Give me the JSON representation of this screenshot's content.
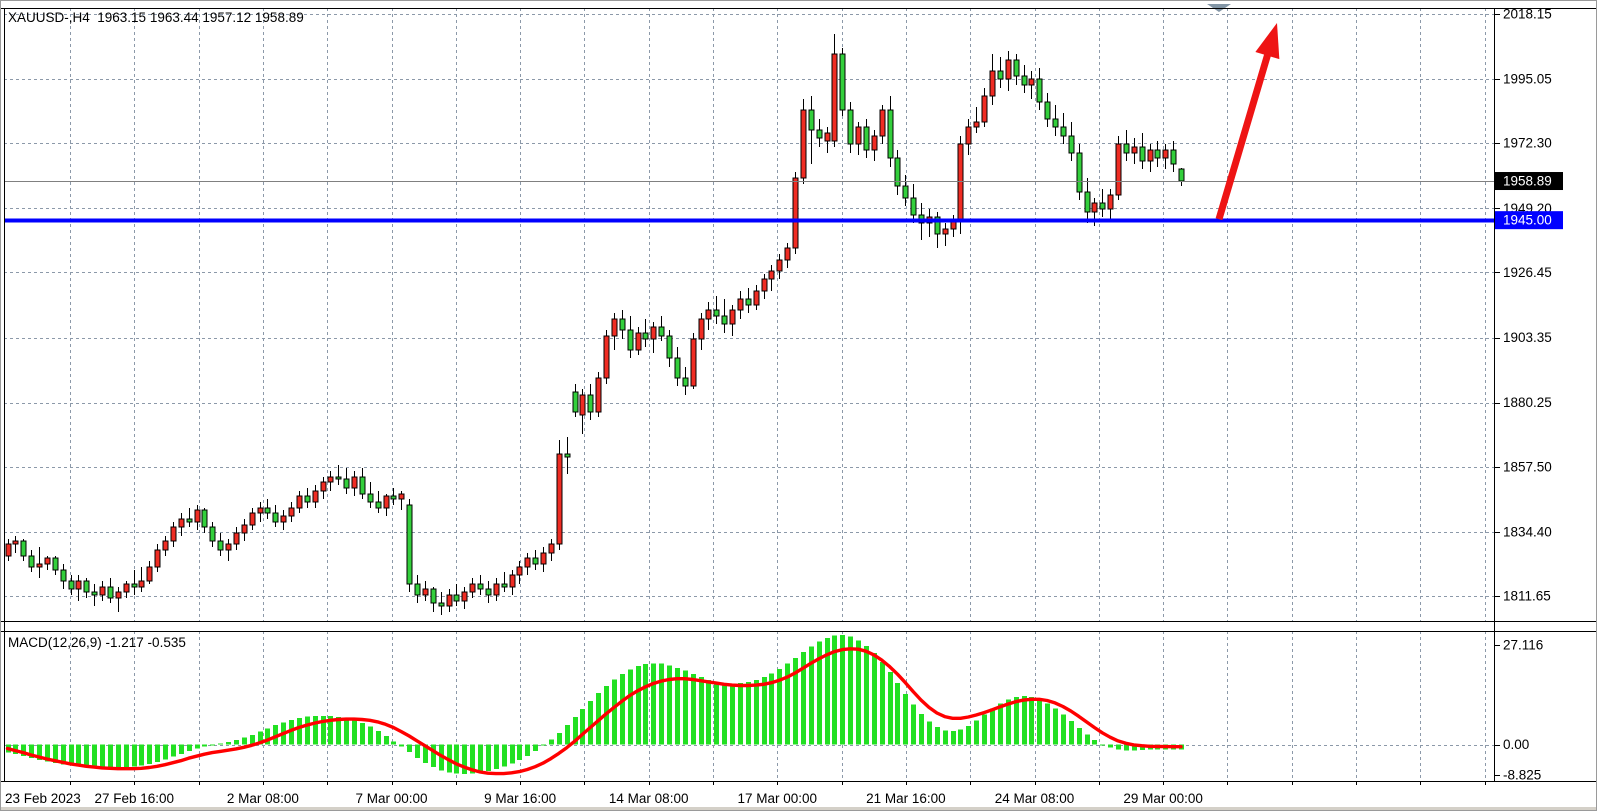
{
  "window": {
    "title": "XAUUSD-,H4  1963.15 1963.44 1957.12 1958.89"
  },
  "chart_data": {
    "type": "candlestick",
    "symbol": "XAUUSD-",
    "timeframe": "H4",
    "title": "XAUUSD-,H4  1963.15 1963.44 1957.12 1958.89",
    "ohlc_display": {
      "open": "1963.15",
      "high": "1963.44",
      "low": "1957.12",
      "close": "1958.89"
    },
    "ylim": [
      1811.65,
      2018.15
    ],
    "grid": true,
    "price_axis_labels": [
      "2018.15",
      "1995.05",
      "1972.30",
      "1949.20",
      "1926.45",
      "1903.35",
      "1880.25",
      "1857.50",
      "1834.40",
      "1811.65"
    ],
    "current_price_label": {
      "text": "1958.89",
      "price": 1958.89,
      "bg": "#000000",
      "fg": "#ffffff"
    },
    "hline": {
      "price": 1945.0,
      "label": "1945.00",
      "color": "#0000ff",
      "label_fg": "#ffffff"
    },
    "time_labels": [
      "23 Feb 2023",
      "27 Feb 16:00",
      "2 Mar 08:00",
      "7 Mar 00:00",
      "9 Mar 16:00",
      "14 Mar 08:00",
      "17 Mar 00:00",
      "21 Mar 16:00",
      "24 Mar 08:00",
      "29 Mar 00:00"
    ],
    "candles": [
      [
        1826,
        1832,
        1824,
        1830
      ],
      [
        1830,
        1833,
        1827,
        1831
      ],
      [
        1831,
        1832,
        1824,
        1826
      ],
      [
        1826,
        1828,
        1820,
        1822
      ],
      [
        1822,
        1829,
        1818,
        1823
      ],
      [
        1823,
        1826,
        1821,
        1825
      ],
      [
        1825,
        1826,
        1819,
        1821
      ],
      [
        1821,
        1823,
        1814,
        1817
      ],
      [
        1817,
        1819,
        1812,
        1814
      ],
      [
        1814,
        1819,
        1810,
        1817
      ],
      [
        1817,
        1818,
        1811,
        1813
      ],
      [
        1813,
        1816,
        1808,
        1812
      ],
      [
        1812,
        1817,
        1810,
        1815
      ],
      [
        1815,
        1818,
        1809,
        1811
      ],
      [
        1811,
        1815,
        1806,
        1813
      ],
      [
        1813,
        1817,
        1811,
        1816
      ],
      [
        1816,
        1821,
        1812,
        1815
      ],
      [
        1815,
        1822,
        1813,
        1817
      ],
      [
        1817,
        1824,
        1816,
        1822
      ],
      [
        1822,
        1830,
        1820,
        1828
      ],
      [
        1828,
        1833,
        1826,
        1831
      ],
      [
        1831,
        1838,
        1829,
        1836
      ],
      [
        1836,
        1841,
        1833,
        1839
      ],
      [
        1839,
        1843,
        1836,
        1838
      ],
      [
        1838,
        1844,
        1835,
        1842
      ],
      [
        1842,
        1843,
        1834,
        1836
      ],
      [
        1836,
        1838,
        1829,
        1831
      ],
      [
        1831,
        1834,
        1826,
        1828
      ],
      [
        1828,
        1832,
        1824,
        1830
      ],
      [
        1830,
        1836,
        1828,
        1834
      ],
      [
        1834,
        1839,
        1831,
        1837
      ],
      [
        1837,
        1843,
        1835,
        1841
      ],
      [
        1841,
        1845,
        1838,
        1843
      ],
      [
        1843,
        1846,
        1839,
        1841
      ],
      [
        1841,
        1844,
        1836,
        1838
      ],
      [
        1838,
        1842,
        1835,
        1840
      ],
      [
        1840,
        1845,
        1838,
        1843
      ],
      [
        1843,
        1849,
        1841,
        1847
      ],
      [
        1847,
        1850,
        1843,
        1845
      ],
      [
        1845,
        1851,
        1843,
        1849
      ],
      [
        1849,
        1854,
        1846,
        1852
      ],
      [
        1852,
        1856,
        1849,
        1854
      ],
      [
        1854,
        1858,
        1851,
        1853
      ],
      [
        1853,
        1857,
        1848,
        1850
      ],
      [
        1850,
        1856,
        1847,
        1854
      ],
      [
        1854,
        1857,
        1846,
        1848
      ],
      [
        1848,
        1852,
        1843,
        1845
      ],
      [
        1845,
        1849,
        1841,
        1843
      ],
      [
        1843,
        1848,
        1840,
        1847
      ],
      [
        1847,
        1850,
        1844,
        1846
      ],
      [
        1846,
        1849,
        1842,
        1848
      ],
      [
        1844,
        1846,
        1813,
        1816
      ],
      [
        1816,
        1819,
        1809,
        1812
      ],
      [
        1812,
        1817,
        1810,
        1814
      ],
      [
        1814,
        1815,
        1806,
        1809
      ],
      [
        1809,
        1813,
        1805,
        1808
      ],
      [
        1808,
        1814,
        1806,
        1812
      ],
      [
        1812,
        1816,
        1808,
        1810
      ],
      [
        1810,
        1815,
        1807,
        1813
      ],
      [
        1813,
        1818,
        1811,
        1816
      ],
      [
        1816,
        1819,
        1812,
        1814
      ],
      [
        1814,
        1817,
        1809,
        1812
      ],
      [
        1812,
        1818,
        1810,
        1816
      ],
      [
        1816,
        1820,
        1813,
        1815
      ],
      [
        1815,
        1821,
        1812,
        1819
      ],
      [
        1819,
        1824,
        1816,
        1822
      ],
      [
        1822,
        1827,
        1819,
        1825
      ],
      [
        1825,
        1828,
        1821,
        1823
      ],
      [
        1823,
        1829,
        1820,
        1827
      ],
      [
        1827,
        1832,
        1824,
        1830
      ],
      [
        1830,
        1867,
        1828,
        1862
      ],
      [
        1862,
        1868,
        1855,
        1861
      ],
      [
        1884,
        1887,
        1875,
        1877
      ],
      [
        1876,
        1885,
        1869,
        1883
      ],
      [
        1883,
        1887,
        1874,
        1877
      ],
      [
        1877,
        1891,
        1875,
        1889
      ],
      [
        1889,
        1906,
        1887,
        1904
      ],
      [
        1904,
        1912,
        1899,
        1910
      ],
      [
        1910,
        1913,
        1903,
        1906
      ],
      [
        1906,
        1911,
        1896,
        1899
      ],
      [
        1899,
        1907,
        1897,
        1905
      ],
      [
        1905,
        1910,
        1900,
        1903
      ],
      [
        1903,
        1909,
        1898,
        1907
      ],
      [
        1907,
        1911,
        1902,
        1904
      ],
      [
        1904,
        1906,
        1893,
        1896
      ],
      [
        1896,
        1900,
        1886,
        1889
      ],
      [
        1889,
        1893,
        1883,
        1886
      ],
      [
        1886,
        1905,
        1885,
        1903
      ],
      [
        1903,
        1912,
        1899,
        1910
      ],
      [
        1910,
        1916,
        1906,
        1913
      ],
      [
        1913,
        1918,
        1908,
        1911
      ],
      [
        1911,
        1917,
        1905,
        1908
      ],
      [
        1908,
        1915,
        1904,
        1913
      ],
      [
        1913,
        1920,
        1910,
        1917
      ],
      [
        1917,
        1921,
        1912,
        1915
      ],
      [
        1915,
        1922,
        1913,
        1920
      ],
      [
        1920,
        1926,
        1917,
        1924
      ],
      [
        1924,
        1929,
        1920,
        1927
      ],
      [
        1927,
        1933,
        1924,
        1931
      ],
      [
        1931,
        1937,
        1928,
        1935
      ],
      [
        1935,
        1962,
        1933,
        1960
      ],
      [
        1960,
        1988,
        1958,
        1984
      ],
      [
        1984,
        1989,
        1965,
        1977
      ],
      [
        1977,
        1981,
        1971,
        1974
      ],
      [
        1973,
        1978,
        1969,
        1976
      ],
      [
        1973,
        2011,
        1971,
        2004
      ],
      [
        2004,
        2006,
        1982,
        1984
      ],
      [
        1984,
        1987,
        1969,
        1972
      ],
      [
        1972,
        1980,
        1968,
        1978
      ],
      [
        1978,
        1981,
        1967,
        1970
      ],
      [
        1970,
        1977,
        1966,
        1975
      ],
      [
        1975,
        1986,
        1972,
        1984
      ],
      [
        1984,
        1989,
        1964,
        1967
      ],
      [
        1967,
        1970,
        1954,
        1957
      ],
      [
        1957,
        1961,
        1950,
        1953
      ],
      [
        1953,
        1958,
        1944,
        1947
      ],
      [
        1947,
        1951,
        1938,
        1944
      ],
      [
        1944,
        1949,
        1939,
        1946
      ],
      [
        1946,
        1948,
        1935,
        1940
      ],
      [
        1940,
        1944,
        1936,
        1942
      ],
      [
        1942,
        1947,
        1939,
        1945
      ],
      [
        1945,
        1975,
        1940,
        1972
      ],
      [
        1972,
        1981,
        1968,
        1978
      ],
      [
        1978,
        1985,
        1976,
        1980
      ],
      [
        1980,
        1992,
        1978,
        1989
      ],
      [
        1989,
        2004,
        1986,
        1998
      ],
      [
        1998,
        2003,
        1992,
        1995
      ],
      [
        1995,
        2005,
        1991,
        2002
      ],
      [
        2002,
        2004,
        1993,
        1996
      ],
      [
        1996,
        2000,
        1990,
        1993
      ],
      [
        1993,
        1998,
        1988,
        1995
      ],
      [
        1995,
        1999,
        1984,
        1987
      ],
      [
        1987,
        1990,
        1978,
        1981
      ],
      [
        1981,
        1986,
        1975,
        1978
      ],
      [
        1978,
        1983,
        1972,
        1975
      ],
      [
        1975,
        1980,
        1966,
        1969
      ],
      [
        1969,
        1972,
        1952,
        1955
      ],
      [
        1955,
        1960,
        1944,
        1948
      ],
      [
        1948,
        1953,
        1943,
        1951
      ],
      [
        1951,
        1956,
        1946,
        1949
      ],
      [
        1949,
        1956,
        1945,
        1954
      ],
      [
        1954,
        1975,
        1952,
        1972
      ],
      [
        1972,
        1977,
        1966,
        1969
      ],
      [
        1969,
        1974,
        1965,
        1971
      ],
      [
        1971,
        1976,
        1963,
        1966
      ],
      [
        1966,
        1972,
        1962,
        1970
      ],
      [
        1970,
        1973,
        1964,
        1967
      ],
      [
        1967,
        1972,
        1963,
        1970
      ],
      [
        1970,
        1973,
        1962,
        1965
      ],
      [
        1963.15,
        1963.44,
        1957.12,
        1958.89
      ]
    ],
    "macd": {
      "label": "MACD(12,26,9) -1.217 -0.535",
      "params": "12,26,9",
      "value": "-1.217",
      "signal_value": "-0.535",
      "axis_labels": [
        "27.116",
        "0.00",
        "-8.825"
      ],
      "axis_max": 27.116,
      "axis_min": -8.825,
      "histogram": [
        -2.0,
        -2.4,
        -2.8,
        -3.3,
        -3.8,
        -4.2,
        -4.6,
        -4.9,
        -5.2,
        -5.5,
        -5.7,
        -5.8,
        -5.9,
        -5.9,
        -5.8,
        -5.7,
        -5.5,
        -5.2,
        -4.8,
        -4.3,
        -3.7,
        -3.0,
        -2.3,
        -1.6,
        -1.0,
        -0.5,
        -0.1,
        0.2,
        0.6,
        1.1,
        1.7,
        2.4,
        3.2,
        4.0,
        4.8,
        5.5,
        6.1,
        6.6,
        6.9,
        7.1,
        7.1,
        7.0,
        6.8,
        6.5,
        6.0,
        5.3,
        4.4,
        3.3,
        2.1,
        0.8,
        -0.5,
        -1.9,
        -3.3,
        -4.6,
        -5.6,
        -6.4,
        -6.9,
        -7.2,
        -7.3,
        -7.2,
        -7.0,
        -6.6,
        -6.1,
        -5.5,
        -4.7,
        -3.8,
        -2.8,
        -1.6,
        -0.3,
        1.2,
        2.9,
        4.8,
        6.8,
        8.8,
        10.8,
        12.7,
        14.5,
        16.1,
        17.5,
        18.6,
        19.4,
        19.9,
        20.1,
        20.0,
        19.6,
        19.0,
        18.3,
        17.5,
        16.7,
        16.0,
        15.5,
        15.2,
        15.1,
        15.2,
        15.5,
        16.0,
        16.7,
        17.6,
        18.7,
        20.0,
        21.4,
        22.9,
        24.3,
        25.5,
        26.4,
        27.0,
        27.1,
        26.7,
        25.8,
        24.4,
        22.6,
        20.4,
        17.9,
        15.2,
        12.5,
        9.9,
        7.6,
        5.7,
        4.3,
        3.5,
        3.3,
        3.7,
        4.6,
        5.9,
        7.4,
        8.9,
        10.2,
        11.2,
        11.8,
        12.0,
        11.8,
        11.2,
        10.2,
        8.9,
        7.4,
        5.8,
        4.1,
        2.5,
        1.1,
        0.0,
        -0.8,
        -1.3,
        -1.5,
        -1.5,
        -1.4,
        -1.3,
        -1.25,
        -1.22,
        -1.22,
        -1.217
      ],
      "signal": [
        -1.0,
        -1.5,
        -2.0,
        -2.6,
        -3.1,
        -3.6,
        -4.0,
        -4.4,
        -4.8,
        -5.1,
        -5.4,
        -5.6,
        -5.8,
        -5.9,
        -6.0,
        -6.0,
        -6.0,
        -5.9,
        -5.7,
        -5.4,
        -5.0,
        -4.5,
        -4.0,
        -3.4,
        -2.9,
        -2.4,
        -2.0,
        -1.7,
        -1.4,
        -1.1,
        -0.7,
        -0.2,
        0.4,
        1.1,
        1.9,
        2.7,
        3.5,
        4.2,
        4.8,
        5.3,
        5.7,
        6.0,
        6.2,
        6.3,
        6.3,
        6.2,
        6.0,
        5.6,
        5.0,
        4.2,
        3.2,
        2.1,
        0.9,
        -0.3,
        -1.5,
        -2.7,
        -3.8,
        -4.8,
        -5.6,
        -6.3,
        -6.8,
        -7.1,
        -7.2,
        -7.2,
        -7.0,
        -6.7,
        -6.2,
        -5.5,
        -4.6,
        -3.5,
        -2.2,
        -0.8,
        0.8,
        2.5,
        4.2,
        5.9,
        7.6,
        9.2,
        10.7,
        12.1,
        13.3,
        14.3,
        15.1,
        15.7,
        16.1,
        16.3,
        16.3,
        16.1,
        15.8,
        15.5,
        15.2,
        14.9,
        14.7,
        14.6,
        14.6,
        14.7,
        14.9,
        15.3,
        15.9,
        16.7,
        17.7,
        18.9,
        20.1,
        21.2,
        22.2,
        23.0,
        23.5,
        23.7,
        23.6,
        23.1,
        22.2,
        20.9,
        19.3,
        17.4,
        15.3,
        13.1,
        11.0,
        9.2,
        7.8,
        6.9,
        6.5,
        6.5,
        6.8,
        7.3,
        7.9,
        8.6,
        9.3,
        10.0,
        10.6,
        11.0,
        11.2,
        11.2,
        10.9,
        10.3,
        9.4,
        8.3,
        7.0,
        5.6,
        4.2,
        2.9,
        1.8,
        0.9,
        0.3,
        -0.1,
        -0.3,
        -0.45,
        -0.5,
        -0.53,
        -0.54,
        -0.535
      ]
    },
    "annotations": {
      "arrow": {
        "description": "red up-trend arrow from 1945 line",
        "color": "#ee1414"
      },
      "shift_marker": {
        "description": "gray chart-shift triangle at top",
        "color": "#8396a6"
      }
    },
    "colors": {
      "bull_candle": "#ef2c23",
      "bear_candle": "#33cf3c",
      "candle_border": "#000000",
      "wick": "#000000",
      "grid": "#8c99a9",
      "macd_histogram": "#22e022",
      "macd_signal": "#ff0000",
      "price_line": "#808080",
      "hline": "#0000ff",
      "axis_text": "#000000",
      "panel_border": "#000000",
      "background": "#ffffff"
    }
  }
}
